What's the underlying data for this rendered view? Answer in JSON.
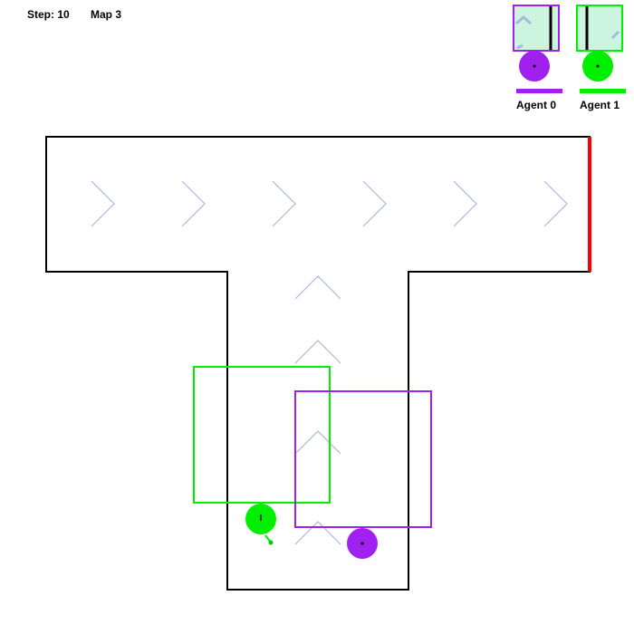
{
  "hud": {
    "step_label": "Step: 10",
    "map_label": "Map 3"
  },
  "agents": [
    {
      "label": "Agent 0",
      "color": "#a020f0",
      "panel_fill": "#ccf5e0"
    },
    {
      "label": "Agent 1",
      "color": "#00ee00",
      "panel_fill": "#ccf5e0"
    }
  ],
  "map": {
    "wall_color": "#000000",
    "goal_color": "#ff0000",
    "arrow_color": "#a8b8e0",
    "arrow_directions": {
      "top_corridor": "right",
      "vertical_corridor": "up"
    }
  }
}
